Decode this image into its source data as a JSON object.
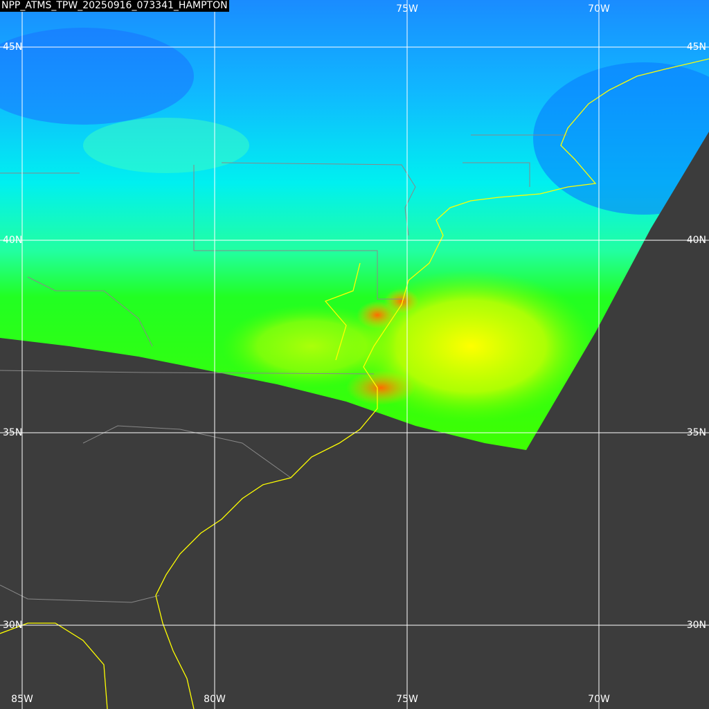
{
  "title": "NPP_ATMS_TPW_20250916_073341_HAMPTON",
  "top_lon_labels": [
    "75W",
    "70W"
  ],
  "bottom_lon_labels": [
    "85W",
    "80W",
    "75W",
    "70W"
  ],
  "left_lat_labels": [
    "45N",
    "40N",
    "35N",
    "30N"
  ],
  "right_lat_labels": [
    "45N",
    "40N",
    "35N",
    "30N"
  ]
}
